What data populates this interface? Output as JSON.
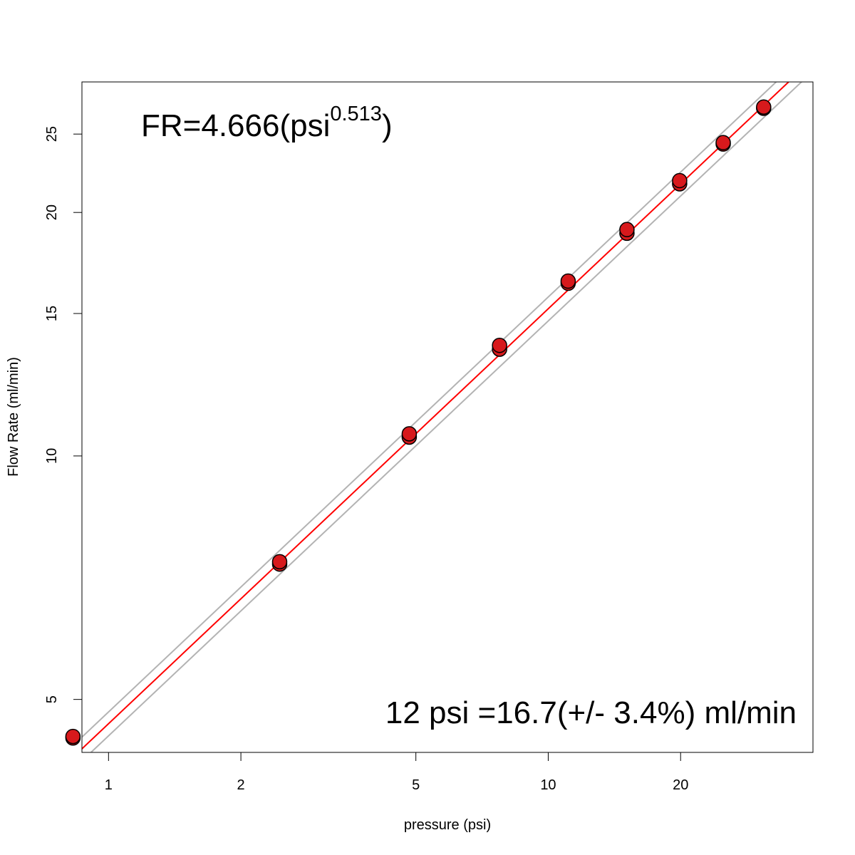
{
  "chart_data": {
    "type": "scatter",
    "xlabel": "pressure (psi)",
    "ylabel": "Flow Rate (ml/min)",
    "x_scale": "log",
    "y_scale": "log",
    "xlim": [
      0.87,
      40
    ],
    "ylim": [
      4.3,
      29
    ],
    "x_ticks": [
      1,
      2,
      5,
      10,
      20
    ],
    "y_ticks": [
      5,
      10,
      15,
      20,
      25
    ],
    "grid": false,
    "colors": {
      "points": "#d7191c",
      "point_outline": "#000000",
      "fit_line": "#ff0000",
      "band_lines": "#b3b3b3"
    },
    "fit": {
      "coefficient": 4.666,
      "exponent": 0.513,
      "band_percent": 3.4
    },
    "points": [
      {
        "x": 0.83,
        "y": 4.48
      },
      {
        "x": 0.83,
        "y": 4.5
      },
      {
        "x": 2.45,
        "y": 7.35
      },
      {
        "x": 2.45,
        "y": 7.4
      },
      {
        "x": 4.83,
        "y": 10.55
      },
      {
        "x": 4.83,
        "y": 10.65
      },
      {
        "x": 7.75,
        "y": 13.55
      },
      {
        "x": 7.75,
        "y": 13.7
      },
      {
        "x": 11.1,
        "y": 16.35
      },
      {
        "x": 11.1,
        "y": 16.45
      },
      {
        "x": 15.1,
        "y": 18.85
      },
      {
        "x": 15.1,
        "y": 19.05
      },
      {
        "x": 19.9,
        "y": 21.7
      },
      {
        "x": 19.9,
        "y": 21.9
      },
      {
        "x": 25.0,
        "y": 24.3
      },
      {
        "x": 25.0,
        "y": 24.4
      },
      {
        "x": 30.9,
        "y": 26.9
      },
      {
        "x": 30.9,
        "y": 27.0
      }
    ],
    "annotations": {
      "equation_prefix": "FR=4.666(psi",
      "equation_exponent": "0.513",
      "equation_suffix": ")",
      "estimate": "12 psi =16.7(+/- 3.4%) ml/min"
    }
  }
}
